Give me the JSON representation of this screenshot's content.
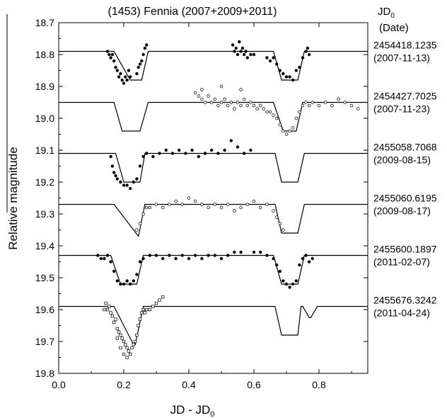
{
  "chart_data": {
    "type": "scatter",
    "title": "(1453) Fennia (2007+2009+2011)",
    "xlabel_main": "JD - JD",
    "xlabel_sub": "0",
    "ylabel": "Relative magnitude",
    "xlim": [
      0.0,
      0.95
    ],
    "ylim": [
      18.7,
      19.8
    ],
    "y_inverted": true,
    "x_ticks": [
      "0.0",
      "0.2",
      "0.4",
      "0.6",
      "0.8"
    ],
    "y_ticks": [
      "18.7",
      "18.8",
      "18.9",
      "19.0",
      "19.1",
      "19.2",
      "19.3",
      "19.4",
      "19.5",
      "19.6",
      "19.7",
      "19.8"
    ],
    "legend_header_main": "JD",
    "legend_header_sub": "0",
    "legend_header_line2": "(Date)",
    "series": [
      {
        "jd0": "2454418.1235",
        "date": "(2007-11-13)",
        "marker": "filled-circle",
        "base": 18.79,
        "model_eclipses": [
          {
            "x1": 0.17,
            "x2": 0.22,
            "x3": 0.255,
            "x4": 0.275,
            "depth": 0.09
          },
          {
            "x1": 0.66,
            "x2": 0.685,
            "x3": 0.735,
            "x4": 0.755,
            "depth": 0.09
          }
        ],
        "points": [
          [
            0.15,
            18.79
          ],
          [
            0.155,
            18.8
          ],
          [
            0.16,
            18.81
          ],
          [
            0.165,
            18.8
          ],
          [
            0.17,
            18.82
          ],
          [
            0.175,
            18.84
          ],
          [
            0.18,
            18.85
          ],
          [
            0.185,
            18.87
          ],
          [
            0.19,
            18.86
          ],
          [
            0.195,
            18.88
          ],
          [
            0.2,
            18.89
          ],
          [
            0.205,
            18.87
          ],
          [
            0.21,
            18.88
          ],
          [
            0.215,
            18.85
          ],
          [
            0.22,
            18.87
          ],
          [
            0.24,
            18.86
          ],
          [
            0.245,
            18.84
          ],
          [
            0.25,
            18.83
          ],
          [
            0.255,
            18.82
          ],
          [
            0.26,
            18.8
          ],
          [
            0.265,
            18.78
          ],
          [
            0.27,
            18.77
          ],
          [
            0.535,
            18.77
          ],
          [
            0.54,
            18.79
          ],
          [
            0.545,
            18.78
          ],
          [
            0.55,
            18.8
          ],
          [
            0.555,
            18.76
          ],
          [
            0.56,
            18.79
          ],
          [
            0.565,
            18.78
          ],
          [
            0.57,
            18.8
          ],
          [
            0.575,
            18.79
          ],
          [
            0.58,
            18.81
          ],
          [
            0.59,
            18.8
          ],
          [
            0.6,
            18.8
          ],
          [
            0.64,
            18.81
          ],
          [
            0.65,
            18.82
          ],
          [
            0.66,
            18.81
          ],
          [
            0.67,
            18.83
          ],
          [
            0.68,
            18.85
          ],
          [
            0.69,
            18.86
          ],
          [
            0.7,
            18.87
          ],
          [
            0.71,
            18.87
          ],
          [
            0.72,
            18.88
          ],
          [
            0.73,
            18.85
          ],
          [
            0.74,
            18.84
          ],
          [
            0.75,
            18.81
          ],
          [
            0.76,
            18.79
          ],
          [
            0.765,
            18.78
          ],
          [
            0.77,
            18.8
          ]
        ]
      },
      {
        "jd0": "2454427.7025",
        "date": "(2007-11-23)",
        "marker": "open-circle",
        "base": 18.95,
        "model_eclipses": [
          {
            "x1": 0.17,
            "x2": 0.195,
            "x3": 0.25,
            "x4": 0.275,
            "depth": 0.09
          },
          {
            "x1": 0.66,
            "x2": 0.69,
            "x3": 0.73,
            "x4": 0.75,
            "depth": 0.09
          }
        ],
        "points": [
          [
            0.42,
            18.92
          ],
          [
            0.43,
            18.93
          ],
          [
            0.44,
            18.94
          ],
          [
            0.45,
            18.95
          ],
          [
            0.46,
            18.93
          ],
          [
            0.47,
            18.95
          ],
          [
            0.48,
            18.94
          ],
          [
            0.49,
            18.96
          ],
          [
            0.5,
            18.95
          ],
          [
            0.51,
            18.94
          ],
          [
            0.52,
            18.96
          ],
          [
            0.53,
            18.95
          ],
          [
            0.54,
            18.97
          ],
          [
            0.55,
            18.95
          ],
          [
            0.56,
            18.96
          ],
          [
            0.57,
            18.94
          ],
          [
            0.58,
            18.96
          ],
          [
            0.59,
            18.95
          ],
          [
            0.6,
            18.96
          ],
          [
            0.61,
            18.97
          ],
          [
            0.62,
            18.96
          ],
          [
            0.63,
            18.97
          ],
          [
            0.64,
            18.98
          ],
          [
            0.65,
            18.98
          ],
          [
            0.66,
            18.99
          ],
          [
            0.67,
            19.0
          ],
          [
            0.68,
            19.02
          ],
          [
            0.69,
            19.04
          ],
          [
            0.7,
            19.05
          ],
          [
            0.71,
            19.04
          ],
          [
            0.72,
            19.03
          ],
          [
            0.73,
            19.0
          ],
          [
            0.74,
            18.98
          ],
          [
            0.75,
            18.96
          ],
          [
            0.76,
            18.95
          ],
          [
            0.77,
            18.96
          ],
          [
            0.78,
            18.95
          ],
          [
            0.8,
            18.96
          ],
          [
            0.82,
            18.95
          ],
          [
            0.84,
            18.96
          ],
          [
            0.86,
            18.94
          ],
          [
            0.88,
            18.95
          ],
          [
            0.9,
            18.96
          ],
          [
            0.92,
            18.97
          ],
          [
            0.44,
            18.91
          ],
          [
            0.5,
            18.9
          ],
          [
            0.56,
            18.91
          ]
        ]
      },
      {
        "jd0": "2455058.7068",
        "date": "(2009-08-15)",
        "marker": "filled-circle",
        "base": 19.11,
        "model_eclipses": [
          {
            "x1": 0.175,
            "x2": 0.2,
            "x3": 0.25,
            "x4": 0.265,
            "depth": 0.09
          },
          {
            "x1": 0.665,
            "x2": 0.685,
            "x3": 0.735,
            "x4": 0.755,
            "depth": 0.09
          }
        ],
        "points": [
          [
            0.16,
            19.12
          ],
          [
            0.165,
            19.15
          ],
          [
            0.17,
            19.17
          ],
          [
            0.175,
            19.18
          ],
          [
            0.18,
            19.19
          ],
          [
            0.19,
            19.2
          ],
          [
            0.2,
            19.21
          ],
          [
            0.21,
            19.21
          ],
          [
            0.22,
            19.22
          ],
          [
            0.23,
            19.2
          ],
          [
            0.24,
            19.19
          ],
          [
            0.25,
            19.15
          ],
          [
            0.26,
            19.12
          ],
          [
            0.27,
            19.11
          ],
          [
            0.29,
            19.12
          ],
          [
            0.31,
            19.11
          ],
          [
            0.33,
            19.1
          ],
          [
            0.35,
            19.11
          ],
          [
            0.37,
            19.1
          ],
          [
            0.39,
            19.11
          ],
          [
            0.41,
            19.1
          ],
          [
            0.43,
            19.12
          ],
          [
            0.45,
            19.11
          ],
          [
            0.47,
            19.1
          ],
          [
            0.49,
            19.11
          ],
          [
            0.51,
            19.1
          ],
          [
            0.53,
            19.07
          ],
          [
            0.55,
            19.09
          ],
          [
            0.57,
            19.11
          ],
          [
            0.59,
            19.1
          ]
        ]
      },
      {
        "jd0": "2455060.6195",
        "date": "(2009-08-17)",
        "marker": "open-circle",
        "base": 19.27,
        "model_eclipses": [
          {
            "x1": 0.17,
            "x2": 0.245,
            "x3": 0.245,
            "x4": 0.265,
            "depth": 0.1
          },
          {
            "x1": 0.665,
            "x2": 0.685,
            "x3": 0.735,
            "x4": 0.755,
            "depth": 0.09
          }
        ],
        "points": [
          [
            0.24,
            19.35
          ],
          [
            0.25,
            19.33
          ],
          [
            0.26,
            19.3
          ],
          [
            0.27,
            19.28
          ],
          [
            0.28,
            19.28
          ],
          [
            0.3,
            19.27
          ],
          [
            0.32,
            19.28
          ],
          [
            0.34,
            19.27
          ],
          [
            0.36,
            19.26
          ],
          [
            0.38,
            19.27
          ],
          [
            0.4,
            19.25
          ],
          [
            0.42,
            19.26
          ],
          [
            0.44,
            19.27
          ],
          [
            0.46,
            19.28
          ],
          [
            0.48,
            19.27
          ],
          [
            0.5,
            19.28
          ],
          [
            0.52,
            19.27
          ],
          [
            0.54,
            19.29
          ],
          [
            0.56,
            19.28
          ],
          [
            0.58,
            19.27
          ],
          [
            0.6,
            19.26
          ],
          [
            0.62,
            19.28
          ],
          [
            0.64,
            19.27
          ],
          [
            0.66,
            19.29
          ],
          [
            0.67,
            19.31
          ],
          [
            0.68,
            19.33
          ],
          [
            0.69,
            19.35
          ]
        ]
      },
      {
        "jd0": "2455600.1897",
        "date": "(2011-02-07)",
        "marker": "filled-circle",
        "base": 19.43,
        "model_eclipses": [
          {
            "x1": 0.16,
            "x2": 0.19,
            "x3": 0.24,
            "x4": 0.26,
            "depth": 0.09
          },
          {
            "x1": 0.66,
            "x2": 0.685,
            "x3": 0.735,
            "x4": 0.755,
            "depth": 0.09
          }
        ],
        "points": [
          [
            0.12,
            19.43
          ],
          [
            0.13,
            19.44
          ],
          [
            0.14,
            19.44
          ],
          [
            0.15,
            19.43
          ],
          [
            0.16,
            19.45
          ],
          [
            0.17,
            19.48
          ],
          [
            0.18,
            19.51
          ],
          [
            0.19,
            19.52
          ],
          [
            0.2,
            19.52
          ],
          [
            0.21,
            19.51
          ],
          [
            0.22,
            19.52
          ],
          [
            0.23,
            19.51
          ],
          [
            0.24,
            19.49
          ],
          [
            0.25,
            19.45
          ],
          [
            0.26,
            19.44
          ],
          [
            0.28,
            19.43
          ],
          [
            0.3,
            19.43
          ],
          [
            0.32,
            19.44
          ],
          [
            0.34,
            19.43
          ],
          [
            0.36,
            19.44
          ],
          [
            0.38,
            19.43
          ],
          [
            0.4,
            19.44
          ],
          [
            0.42,
            19.43
          ],
          [
            0.44,
            19.44
          ],
          [
            0.46,
            19.43
          ],
          [
            0.48,
            19.43
          ],
          [
            0.5,
            19.44
          ],
          [
            0.52,
            19.43
          ],
          [
            0.54,
            19.42
          ],
          [
            0.56,
            19.42
          ],
          [
            0.6,
            19.42
          ],
          [
            0.62,
            19.42
          ],
          [
            0.64,
            19.43
          ],
          [
            0.66,
            19.44
          ],
          [
            0.67,
            19.46
          ],
          [
            0.68,
            19.48
          ],
          [
            0.69,
            19.51
          ],
          [
            0.7,
            19.52
          ],
          [
            0.71,
            19.53
          ],
          [
            0.72,
            19.52
          ],
          [
            0.73,
            19.51
          ],
          [
            0.74,
            19.46
          ],
          [
            0.75,
            19.44
          ],
          [
            0.76,
            19.43
          ],
          [
            0.77,
            19.45
          ],
          [
            0.78,
            19.44
          ]
        ]
      },
      {
        "jd0": "2455676.3242",
        "date": "(2011-04-24)",
        "marker": "open-square",
        "base": 19.59,
        "model_eclipses": [
          {
            "x1": 0.17,
            "x2": 0.23,
            "x3": 0.235,
            "x4": 0.26,
            "depth": 0.12
          },
          {
            "x1": 0.665,
            "x2": 0.685,
            "x3": 0.735,
            "x4": 0.745,
            "depth": 0.09
          },
          {
            "x1": 0.75,
            "x2": 0.77,
            "x3": 0.775,
            "x4": 0.795,
            "depth": 0.035
          }
        ],
        "points": [
          [
            0.14,
            19.6
          ],
          [
            0.145,
            19.58
          ],
          [
            0.15,
            19.6
          ],
          [
            0.155,
            19.59
          ],
          [
            0.16,
            19.61
          ],
          [
            0.165,
            19.62
          ],
          [
            0.17,
            19.64
          ],
          [
            0.175,
            19.63
          ],
          [
            0.18,
            19.66
          ],
          [
            0.185,
            19.67
          ],
          [
            0.19,
            19.68
          ],
          [
            0.195,
            19.69
          ],
          [
            0.2,
            19.7
          ],
          [
            0.205,
            19.71
          ],
          [
            0.21,
            19.72
          ],
          [
            0.215,
            19.73
          ],
          [
            0.22,
            19.74
          ],
          [
            0.225,
            19.72
          ],
          [
            0.23,
            19.71
          ],
          [
            0.235,
            19.7
          ],
          [
            0.24,
            19.68
          ],
          [
            0.245,
            19.65
          ],
          [
            0.25,
            19.63
          ],
          [
            0.255,
            19.61
          ],
          [
            0.26,
            19.6
          ],
          [
            0.265,
            19.61
          ],
          [
            0.27,
            19.6
          ],
          [
            0.28,
            19.6
          ],
          [
            0.29,
            19.59
          ],
          [
            0.3,
            19.58
          ],
          [
            0.31,
            19.57
          ],
          [
            0.32,
            19.56
          ],
          [
            0.21,
            19.75
          ],
          [
            0.2,
            19.74
          ],
          [
            0.19,
            19.72
          ],
          [
            0.18,
            19.69
          ]
        ]
      }
    ]
  }
}
